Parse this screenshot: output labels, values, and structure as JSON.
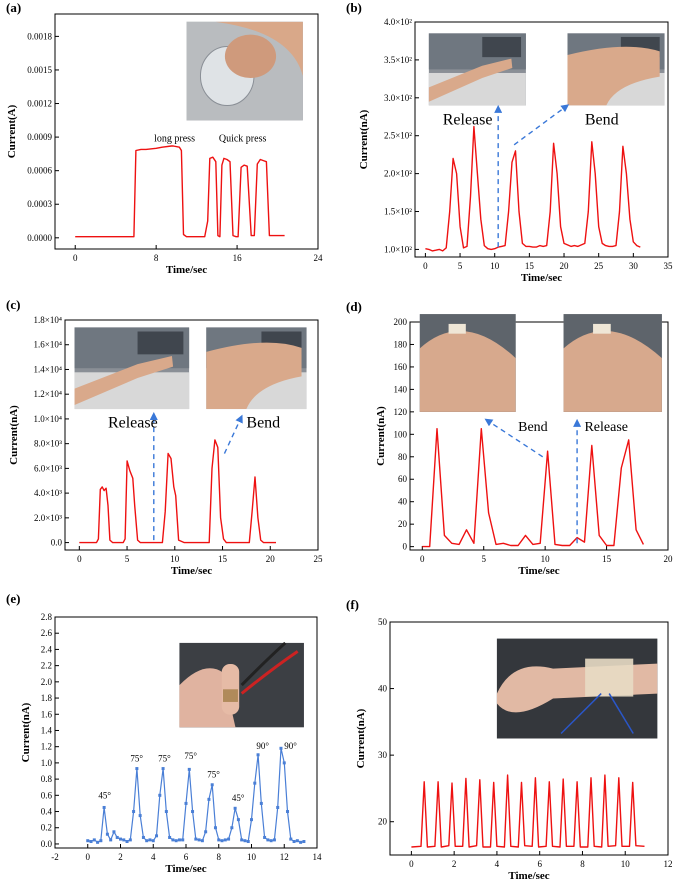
{
  "colors": {
    "red": "#ee1111",
    "blue": "#4a7fd6",
    "arrow": "#3a78d8"
  },
  "chart_data": [
    {
      "id": "a",
      "label": "(a)",
      "type": "line",
      "xlabel": "Time/sec",
      "ylabel": "Current(A)",
      "xlim": [
        -2,
        24
      ],
      "ylim": [
        -0.0001,
        0.002
      ],
      "xticks": [
        0,
        8,
        16,
        24
      ],
      "xtick_labels": [
        "0",
        "8",
        "16",
        "24"
      ],
      "yticks": [
        0,
        0.0003,
        0.0006,
        0.0009,
        0.0012,
        0.0015,
        0.0018
      ],
      "ytick_labels": [
        "0.0000",
        "0.0003",
        "0.0006",
        "0.0009",
        "0.0012",
        "0.0015",
        "0.0018"
      ],
      "annotations": [
        {
          "text": "long press",
          "x": 7.8,
          "y": 0.00086
        },
        {
          "text": "Quick press",
          "x": 14.2,
          "y": 0.00086
        }
      ],
      "photos": [
        {
          "kind": "hand pressing device",
          "x0": 11.0,
          "x1": 22.5,
          "y0": 0.00105,
          "y1": 0.00193
        }
      ],
      "series": [
        {
          "color": "red",
          "x": [
            0,
            5,
            5.8,
            6.0,
            6.5,
            7,
            8,
            8.6,
            9.5,
            9.7,
            10.3,
            10.5,
            10.7,
            11,
            12,
            12.8,
            13.1,
            13.3,
            13.6,
            13.9,
            14.1,
            14.3,
            14.5,
            14.7,
            15.0,
            15.3,
            15.6,
            15.9,
            16.1,
            16.4,
            16.7,
            17.0,
            17.4,
            17.7,
            18.0,
            18.3,
            18.6,
            18.9,
            19.2,
            20.0,
            20.7
          ],
          "y": [
            1e-05,
            1e-05,
            1e-05,
            0.00078,
            0.00079,
            0.00079,
            0.0008,
            0.00081,
            0.00082,
            0.00082,
            0.00081,
            0.00078,
            3e-05,
            1e-05,
            1e-05,
            1e-05,
            0.00015,
            0.00071,
            0.00072,
            0.00068,
            2e-05,
            1e-05,
            0.00065,
            0.00071,
            0.0007,
            0.00068,
            2e-05,
            1e-05,
            1e-05,
            0.00063,
            0.00065,
            0.00064,
            2e-05,
            2e-05,
            0.00066,
            0.0007,
            0.00069,
            0.00068,
            2e-05,
            2e-05,
            2e-05
          ]
        }
      ]
    },
    {
      "id": "b",
      "label": "(b)",
      "type": "line",
      "xlabel": "Time/sec",
      "ylabel": "Current(nA)",
      "xlim": [
        -1.5,
        35
      ],
      "ylim": [
        90,
        400
      ],
      "xticks": [
        0,
        5,
        10,
        15,
        20,
        25,
        30,
        35
      ],
      "xtick_labels": [
        "0",
        "5",
        "10",
        "15",
        "20",
        "25",
        "30",
        "35"
      ],
      "yticks": [
        100,
        150,
        200,
        250,
        300,
        350,
        400
      ],
      "ytick_labels": [
        "1.0×10²",
        "1.5×10²",
        "2.0×10²",
        "2.5×10²",
        "3.0×10²",
        "3.5×10²",
        "4.0×10²"
      ],
      "annotations": [
        {
          "text": "Release",
          "x": 2.5,
          "y": 265
        },
        {
          "text": "Bend",
          "x": 23,
          "y": 265
        }
      ],
      "arrows": [
        {
          "x1": 10.5,
          "y1": 103,
          "x2": 10.5,
          "y2": 288
        },
        {
          "x1": 12.8,
          "y1": 238,
          "x2": 20.5,
          "y2": 290
        }
      ],
      "photos": [
        {
          "kind": "arm released",
          "x0": 0.5,
          "x1": 14.5,
          "y0": 290,
          "y1": 385
        },
        {
          "kind": "arm bent",
          "x0": 20.5,
          "x1": 34.5,
          "y0": 290,
          "y1": 385
        }
      ],
      "series": [
        {
          "color": "red",
          "x": [
            0,
            0.5,
            1,
            1.5,
            2,
            2.5,
            3,
            3.5,
            4,
            4.5,
            5,
            5.5,
            6,
            6.5,
            7,
            7.5,
            8,
            8.5,
            9,
            9.5,
            10,
            10.5,
            11,
            11.5,
            12,
            12.5,
            13,
            13.5,
            14,
            14.5,
            15,
            15.5,
            16,
            16.5,
            17,
            17.5,
            18,
            18.5,
            19,
            19.5,
            20,
            20.5,
            21,
            21.5,
            22,
            22.5,
            23,
            23.5,
            24,
            24.5,
            25,
            25.5,
            26,
            26.5,
            27,
            27.5,
            28,
            28.5,
            29,
            29.5,
            30,
            30.5,
            31
          ],
          "y": [
            101,
            100,
            98,
            99,
            100,
            98,
            102,
            150,
            220,
            200,
            130,
            102,
            104,
            170,
            262,
            200,
            140,
            105,
            101,
            100,
            101,
            103,
            104,
            105,
            150,
            215,
            230,
            150,
            108,
            104,
            104,
            103,
            103,
            105,
            104,
            105,
            150,
            240,
            200,
            130,
            108,
            106,
            104,
            105,
            104,
            106,
            108,
            150,
            242,
            200,
            130,
            108,
            105,
            104,
            104,
            105,
            150,
            236,
            200,
            140,
            110,
            105,
            103
          ]
        }
      ]
    },
    {
      "id": "c",
      "label": "(c)",
      "type": "line",
      "xlabel": "Time/sec",
      "ylabel": "Current(nA)",
      "xlim": [
        -1.5,
        25
      ],
      "ylim": [
        -600,
        18000
      ],
      "xticks": [
        0,
        5,
        10,
        15,
        20,
        25
      ],
      "xtick_labels": [
        "0",
        "5",
        "10",
        "15",
        "20",
        "25"
      ],
      "yticks": [
        0,
        2000,
        4000,
        6000,
        8000,
        10000,
        12000,
        14000,
        16000,
        18000
      ],
      "ytick_labels": [
        "0.0",
        "2.0×10³",
        "4.0×10³",
        "6.0×10³",
        "8.0×10³",
        "1.0×10⁴",
        "1.2×10⁴",
        "1.4×10⁴",
        "1.6×10⁴",
        "1.8×10⁴"
      ],
      "annotations": [
        {
          "text": "Release",
          "x": 3.0,
          "y": 9300
        },
        {
          "text": "Bend",
          "x": 17.5,
          "y": 9300
        }
      ],
      "arrows": [
        {
          "x1": 7.8,
          "y1": 200,
          "x2": 7.8,
          "y2": 10400
        },
        {
          "x1": 15.2,
          "y1": 7200,
          "x2": 17.0,
          "y2": 10200
        }
      ],
      "photos": [
        {
          "kind": "arm released",
          "x0": -0.5,
          "x1": 11.5,
          "y0": 10800,
          "y1": 17400
        },
        {
          "kind": "arm bent",
          "x0": 13.3,
          "x1": 23.8,
          "y0": 10800,
          "y1": 17400
        }
      ],
      "series": [
        {
          "color": "red",
          "x": [
            0,
            1,
            1.8,
            2.0,
            2.2,
            2.4,
            2.6,
            2.8,
            3.0,
            3.2,
            3.5,
            4,
            4.6,
            4.8,
            5.0,
            5.3,
            5.6,
            5.8,
            6.1,
            6.4,
            7,
            8,
            8.7,
            9.0,
            9.3,
            9.6,
            9.9,
            10.1,
            10.4,
            11,
            12,
            13,
            13.6,
            13.9,
            14.2,
            14.5,
            14.8,
            15.1,
            15.4,
            16,
            17,
            17.8,
            18.1,
            18.4,
            18.7,
            19.0,
            19.3,
            20,
            20.6
          ],
          "y": [
            0,
            0,
            0,
            300,
            4300,
            4500,
            4200,
            4400,
            3000,
            200,
            0,
            0,
            0,
            300,
            6600,
            5800,
            5200,
            3000,
            200,
            0,
            0,
            0,
            0,
            2500,
            7200,
            6800,
            4500,
            3800,
            200,
            0,
            0,
            0,
            0,
            6000,
            8300,
            7700,
            2000,
            300,
            0,
            0,
            0,
            0,
            2500,
            5300,
            2000,
            200,
            0,
            0,
            0
          ]
        }
      ]
    },
    {
      "id": "d",
      "label": "(d)",
      "type": "line",
      "xlabel": "Time/sec",
      "ylabel": "Current(nA)",
      "xlim": [
        -1,
        20
      ],
      "ylim": [
        -3,
        200
      ],
      "xticks": [
        0,
        5,
        10,
        15,
        20
      ],
      "xtick_labels": [
        "0",
        "5",
        "10",
        "15",
        "20"
      ],
      "yticks": [
        0,
        20,
        40,
        60,
        80,
        100,
        120,
        140,
        160,
        180,
        200
      ],
      "ytick_labels": [
        "0",
        "20",
        "40",
        "60",
        "80",
        "100",
        "120",
        "140",
        "160",
        "180",
        "200"
      ],
      "annotations": [
        {
          "text": "Bend",
          "x": 7.8,
          "y": 103
        },
        {
          "text": "Release",
          "x": 13.2,
          "y": 103
        }
      ],
      "arrows": [
        {
          "x1": 9.8,
          "y1": 80,
          "x2": 5.2,
          "y2": 113
        },
        {
          "x1": 12.6,
          "y1": 3,
          "x2": 12.6,
          "y2": 112
        }
      ],
      "photos": [
        {
          "kind": "knee bent",
          "x0": -0.2,
          "x1": 7.6,
          "y0": 120,
          "y1": 207
        },
        {
          "kind": "knee released",
          "x0": 11.5,
          "x1": 19.5,
          "y0": 120,
          "y1": 207
        }
      ],
      "series": [
        {
          "color": "red",
          "x": [
            0,
            0.6,
            1.2,
            1.8,
            2.4,
            3.0,
            3.6,
            4.2,
            4.8,
            5.4,
            6.0,
            6.6,
            7.2,
            7.8,
            8.4,
            9.0,
            9.6,
            10.2,
            10.8,
            11.4,
            12.0,
            12.6,
            13.2,
            13.8,
            14.4,
            15.0,
            15.6,
            16.2,
            16.8,
            17.4,
            18.0
          ],
          "y": [
            0,
            0,
            105,
            10,
            3,
            2,
            15,
            3,
            105,
            30,
            2,
            3,
            1,
            1,
            10,
            2,
            3,
            85,
            2,
            1,
            1,
            8,
            4,
            90,
            10,
            1,
            1,
            70,
            95,
            15,
            2
          ]
        }
      ]
    },
    {
      "id": "e",
      "label": "(e)",
      "type": "line",
      "xlabel": "Time/sec",
      "ylabel": "Current(nA)",
      "xlim": [
        -2,
        14
      ],
      "ylim": [
        -0.05,
        2.8
      ],
      "xticks": [
        -2,
        0,
        2,
        4,
        6,
        8,
        10,
        12,
        14
      ],
      "xtick_labels": [
        "-2",
        "0",
        "2",
        "4",
        "6",
        "8",
        "10",
        "12",
        "14"
      ],
      "yticks": [
        0,
        0.2,
        0.4,
        0.6,
        0.8,
        1.0,
        1.2,
        1.4,
        1.6,
        1.8,
        2.0,
        2.2,
        2.4,
        2.6,
        2.8
      ],
      "ytick_labels": [
        "0.0",
        "0.2",
        "0.4",
        "0.6",
        "0.8",
        "1.0",
        "1.2",
        "1.4",
        "1.6",
        "1.8",
        "2.0",
        "2.2",
        "2.4",
        "2.6",
        "2.8"
      ],
      "annotations": [
        {
          "text": "45°",
          "x": 0.65,
          "y": 0.56
        },
        {
          "text": "75°",
          "x": 2.6,
          "y": 1.02
        },
        {
          "text": "75°",
          "x": 4.3,
          "y": 1.02
        },
        {
          "text": "75°",
          "x": 5.9,
          "y": 1.05
        },
        {
          "text": "75°",
          "x": 7.3,
          "y": 0.82
        },
        {
          "text": "45°",
          "x": 8.8,
          "y": 0.53
        },
        {
          "text": "90°",
          "x": 10.3,
          "y": 1.17
        },
        {
          "text": "90°",
          "x": 12.0,
          "y": 1.17
        }
      ],
      "photos": [
        {
          "kind": "finger with sensor",
          "x0": 5.6,
          "x1": 13.2,
          "y0": 1.44,
          "y1": 2.48
        }
      ],
      "series": [
        {
          "color": "blue",
          "x": [
            0,
            0.2,
            0.4,
            0.6,
            0.8,
            1.0,
            1.2,
            1.4,
            1.6,
            1.8,
            2.0,
            2.2,
            2.4,
            2.6,
            2.8,
            3.0,
            3.2,
            3.4,
            3.6,
            3.8,
            4.0,
            4.2,
            4.4,
            4.6,
            4.8,
            5.0,
            5.2,
            5.4,
            5.6,
            5.8,
            6.0,
            6.2,
            6.4,
            6.6,
            6.8,
            7.0,
            7.2,
            7.4,
            7.6,
            7.8,
            8.0,
            8.2,
            8.4,
            8.6,
            8.8,
            9.0,
            9.2,
            9.4,
            9.6,
            9.8,
            10.0,
            10.2,
            10.4,
            10.6,
            10.8,
            11.0,
            11.2,
            11.4,
            11.6,
            11.8,
            12.0,
            12.2,
            12.4,
            12.6,
            12.8,
            13.0,
            13.2
          ],
          "y": [
            0.04,
            0.03,
            0.05,
            0.02,
            0.04,
            0.45,
            0.12,
            0.05,
            0.15,
            0.08,
            0.06,
            0.05,
            0.03,
            0.05,
            0.4,
            0.93,
            0.35,
            0.08,
            0.04,
            0.05,
            0.04,
            0.1,
            0.6,
            0.93,
            0.4,
            0.08,
            0.05,
            0.04,
            0.05,
            0.05,
            0.5,
            0.92,
            0.4,
            0.06,
            0.05,
            0.04,
            0.15,
            0.55,
            0.73,
            0.2,
            0.05,
            0.04,
            0.05,
            0.06,
            0.2,
            0.44,
            0.3,
            0.05,
            0.04,
            0.03,
            0.3,
            0.75,
            1.1,
            0.5,
            0.08,
            0.05,
            0.04,
            0.05,
            0.45,
            1.18,
            1.0,
            0.4,
            0.06,
            0.03,
            0.04,
            0.02,
            0.03
          ]
        }
      ]
    },
    {
      "id": "f",
      "label": "(f)",
      "type": "line",
      "xlabel": "Time/sec",
      "ylabel": "Current(nA)",
      "xlim": [
        -1,
        12
      ],
      "ylim": [
        15,
        50
      ],
      "xticks": [
        0,
        2,
        4,
        6,
        8,
        10,
        12
      ],
      "xtick_labels": [
        "0",
        "2",
        "4",
        "6",
        "8",
        "10",
        "12"
      ],
      "yticks": [
        20,
        30,
        40,
        50
      ],
      "ytick_labels": [
        "20",
        "30",
        "40",
        "50"
      ],
      "annotations": [],
      "photos": [
        {
          "kind": "wrist with sensor",
          "x0": 4.0,
          "x1": 11.5,
          "y0": 32.5,
          "y1": 47.5
        }
      ],
      "series": [
        {
          "color": "red",
          "x": [
            0,
            0.45,
            0.6,
            0.75,
            1.1,
            1.25,
            1.4,
            1.75,
            1.9,
            2.05,
            2.4,
            2.55,
            2.7,
            3.05,
            3.2,
            3.35,
            3.7,
            3.85,
            4.0,
            4.35,
            4.5,
            4.65,
            5.0,
            5.15,
            5.3,
            5.65,
            5.8,
            5.95,
            6.3,
            6.45,
            6.6,
            6.95,
            7.1,
            7.25,
            7.6,
            7.75,
            7.9,
            8.25,
            8.4,
            8.55,
            8.9,
            9.05,
            9.2,
            9.55,
            9.7,
            9.85,
            10.2,
            10.35,
            10.5,
            10.9
          ],
          "y": [
            16.2,
            16.3,
            26.0,
            16.2,
            16.3,
            26.0,
            16.2,
            16.4,
            25.8,
            16.3,
            16.3,
            26.5,
            16.2,
            16.4,
            26.3,
            16.2,
            16.2,
            25.9,
            16.3,
            16.2,
            27.0,
            16.3,
            16.2,
            25.9,
            16.4,
            16.3,
            26.6,
            16.2,
            16.3,
            26.0,
            16.3,
            16.2,
            26.4,
            16.3,
            16.3,
            26.0,
            16.2,
            16.2,
            26.6,
            16.3,
            16.2,
            27.0,
            16.3,
            16.4,
            26.6,
            16.3,
            16.3,
            25.9,
            16.4,
            16.3
          ]
        }
      ]
    }
  ]
}
